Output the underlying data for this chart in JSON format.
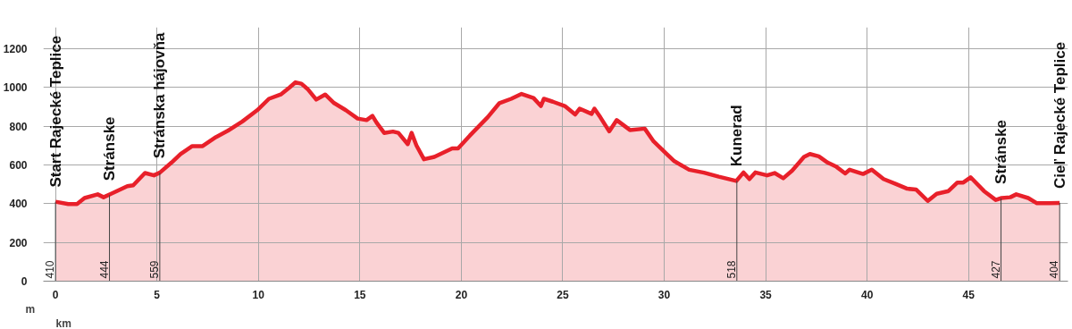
{
  "chart_data": {
    "type": "area",
    "xlabel": "km",
    "ylabel": "m",
    "xlim": [
      -0.6,
      49.9
    ],
    "ylim": [
      0,
      1310
    ],
    "xticks": [
      0,
      5,
      10,
      15,
      20,
      25,
      30,
      35,
      40,
      45
    ],
    "yticks": [
      0,
      200,
      400,
      600,
      800,
      1000,
      1200
    ],
    "grid": true,
    "line_style": "solid",
    "x": [
      0,
      0.63,
      1.06,
      1.43,
      2.08,
      2.37,
      2.74,
      3.54,
      3.83,
      4.41,
      4.85,
      5.14,
      5.72,
      6.16,
      6.74,
      7.25,
      7.9,
      8.49,
      9.21,
      9.94,
      10.52,
      11.1,
      11.54,
      11.83,
      12.12,
      12.42,
      12.85,
      13.29,
      13.73,
      14.31,
      14.89,
      15.33,
      15.62,
      15.83,
      16.2,
      16.63,
      16.9,
      17.36,
      17.55,
      17.79,
      18.16,
      18.67,
      19.55,
      19.84,
      20.42,
      21.3,
      21.88,
      22.46,
      22.97,
      23.56,
      23.92,
      24.07,
      24.51,
      25.1,
      25.61,
      25.83,
      26.42,
      26.56,
      26.85,
      27.29,
      27.66,
      28.31,
      29.04,
      29.48,
      30.06,
      30.5,
      31.23,
      31.96,
      32.69,
      33.55,
      33.91,
      34.2,
      34.49,
      35.07,
      35.44,
      35.87,
      36.31,
      36.89,
      37.18,
      37.62,
      38.05,
      38.49,
      38.92,
      39.14,
      39.8,
      40.23,
      40.81,
      41.4,
      41.98,
      42.41,
      42.99,
      43.43,
      44.01,
      44.45,
      44.74,
      45.1,
      45.76,
      46.34,
      46.63,
      47.06,
      47.35,
      47.94,
      48.37,
      48.95,
      49.49
    ],
    "series": [
      {
        "color": "#e8202a",
        "values": [
          410,
          398,
          398,
          429,
          448,
          433,
          451,
          490,
          495,
          558,
          546,
          560,
          612,
          656,
          697,
          697,
          743,
          776,
          824,
          882,
          941,
          963,
          1000,
          1026,
          1019,
          992,
          937,
          963,
          919,
          882,
          839,
          831,
          853,
          817,
          765,
          772,
          765,
          707,
          765,
          700,
          629,
          641,
          685,
          685,
          751,
          846,
          919,
          941,
          966,
          945,
          904,
          941,
          926,
          904,
          860,
          890,
          863,
          890,
          846,
          773,
          831,
          780,
          787,
          721,
          663,
          619,
          575,
          560,
          539,
          517,
          561,
          527,
          561,
          546,
          558,
          531,
          571,
          641,
          656,
          644,
          612,
          590,
          556,
          575,
          553,
          575,
          527,
          502,
          477,
          473,
          414,
          451,
          465,
          509,
          509,
          536,
          465,
          419,
          429,
          433,
          448,
          429,
          402,
          402,
          404
        ]
      }
    ],
    "annotations": [
      {
        "text": "Start Rajecké Teplice",
        "x": 0,
        "y": 410
      },
      {
        "text": "410",
        "x": 0,
        "y": 0
      },
      {
        "text": "Stránske",
        "x": 2.66,
        "y": 444
      },
      {
        "text": "444",
        "x": 2.66,
        "y": 0
      },
      {
        "text": "Stránska hájovňa",
        "x": 5.14,
        "y": 559
      },
      {
        "text": "559",
        "x": 5.14,
        "y": 0
      },
      {
        "text": "Kunerad",
        "x": 33.58,
        "y": 518
      },
      {
        "text": "518",
        "x": 33.58,
        "y": 0
      },
      {
        "text": "Stránske",
        "x": 46.6,
        "y": 427
      },
      {
        "text": "427",
        "x": 46.6,
        "y": 0
      },
      {
        "text": "Cieľ Rajecké Teplice",
        "x": 49.49,
        "y": 404
      },
      {
        "text": "404",
        "x": 49.49,
        "y": 0
      }
    ]
  }
}
